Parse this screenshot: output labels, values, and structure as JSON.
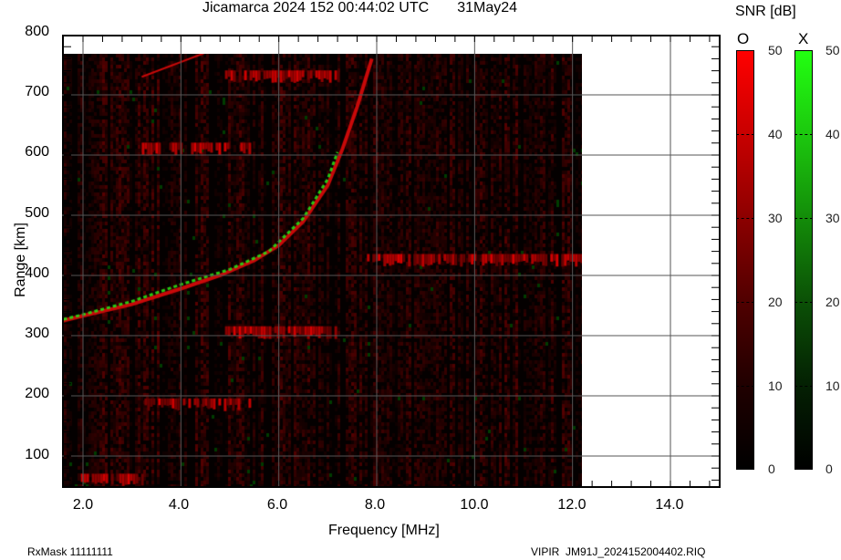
{
  "header": {
    "title": "Jicamarca 2024 152 00:44:02 UTC       31May24"
  },
  "colorbar": {
    "title": "SNR [dB]",
    "o_label": "O",
    "x_label": "X",
    "ticks": [
      "50",
      "40",
      "30",
      "20",
      "10",
      "0"
    ],
    "o_color_max": "#ff0000",
    "x_color_max": "#22ff11"
  },
  "footer": {
    "rxmask": "RxMask 11111111",
    "filename": "VIPIR  JM91J_2024152004402.RIQ"
  },
  "axes": {
    "xlabel": "Frequency [MHz]",
    "ylabel": "Range [km]",
    "xticks": [
      "2.0",
      "4.0",
      "6.0",
      "8.0",
      "10.0",
      "12.0",
      "14.0"
    ],
    "yticks": [
      "800",
      "700",
      "600",
      "500",
      "400",
      "300",
      "200",
      "100"
    ]
  },
  "chart_data": {
    "type": "heatmap",
    "title": "Jicamarca 2024 152 00:44:02 UTC 31May24",
    "xlabel": "Frequency [MHz]",
    "ylabel": "Range [km]",
    "xlim": [
      1.6,
      15.0
    ],
    "ylim": [
      50,
      800
    ],
    "xticks": [
      2.0,
      4.0,
      6.0,
      8.0,
      10.0,
      12.0,
      14.0
    ],
    "yticks": [
      100,
      200,
      300,
      400,
      500,
      600,
      700,
      800
    ],
    "grid": true,
    "data_extent": {
      "freq_min_mhz": 1.6,
      "freq_max_mhz": 12.3,
      "range_min_km": 50,
      "range_max_km": 765
    },
    "colorbar": {
      "label": "SNR [dB]",
      "range": [
        0,
        50
      ],
      "ticks": [
        0,
        10,
        20,
        30,
        40,
        50
      ],
      "channels": [
        "O (red)",
        "X (green)"
      ]
    },
    "traces": [
      {
        "name": "O-mode F-layer trace",
        "color": "red",
        "points": [
          [
            1.6,
            325
          ],
          [
            2.0,
            333
          ],
          [
            3.0,
            352
          ],
          [
            4.0,
            378
          ],
          [
            4.8,
            400
          ],
          [
            5.5,
            425
          ],
          [
            6.0,
            450
          ],
          [
            6.5,
            490
          ],
          [
            7.0,
            550
          ],
          [
            7.3,
            610
          ],
          [
            7.6,
            680
          ],
          [
            7.9,
            760
          ]
        ]
      },
      {
        "name": "X-mode F-layer trace",
        "color": "green",
        "points": [
          [
            1.6,
            327
          ],
          [
            2.0,
            335
          ],
          [
            3.0,
            357
          ],
          [
            4.0,
            385
          ],
          [
            5.0,
            410
          ],
          [
            5.8,
            440
          ],
          [
            6.5,
            495
          ],
          [
            7.0,
            560
          ],
          [
            7.2,
            605
          ]
        ]
      },
      {
        "name": "Second-hop trace (faint)",
        "color": "red",
        "points": [
          [
            3.2,
            730
          ],
          [
            4.5,
            770
          ]
        ]
      }
    ],
    "interference_bands_km": [
      {
        "range_km": 60,
        "freq_mhz": [
          1.9,
          3.2
        ],
        "snr_db": 40
      },
      {
        "range_km": 185,
        "freq_mhz": [
          3.2,
          5.4
        ],
        "snr_db": 40
      },
      {
        "range_km": 305,
        "freq_mhz": [
          4.9,
          7.2
        ],
        "snr_db": 40
      },
      {
        "range_km": 425,
        "freq_mhz": [
          7.8,
          12.3
        ],
        "snr_db": 40
      },
      {
        "range_km": 610,
        "freq_mhz": [
          3.2,
          5.4
        ],
        "snr_db": 30
      },
      {
        "range_km": 730,
        "freq_mhz": [
          4.9,
          7.2
        ],
        "snr_db": 30
      }
    ]
  }
}
